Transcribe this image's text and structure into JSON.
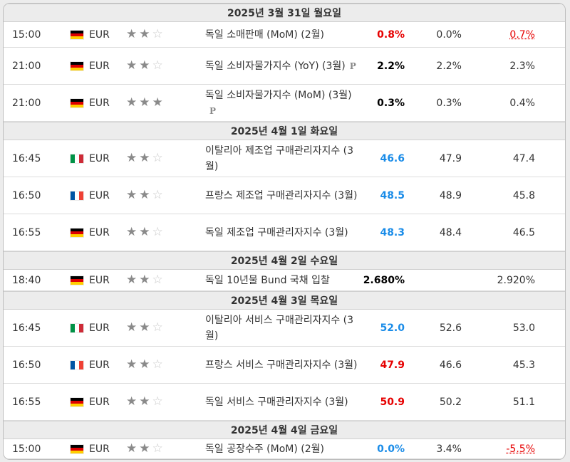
{
  "colors": {
    "positive": "#1a8ce8",
    "negative": "#e60000",
    "neutral": "#000000"
  },
  "days": [
    {
      "label": "2025년 3월 31일 월요일",
      "rows": [
        {
          "time": "15:00",
          "flag": "de",
          "currency": "EUR",
          "stars": 2,
          "event": "독일 소매판매 (MoM) (2월)",
          "prelim": "",
          "actual": "0.8%",
          "actual_tone": "bad",
          "forecast": "0.0%",
          "previous": "0.7%",
          "prev_revised": true,
          "h": 36
        },
        {
          "time": "21:00",
          "flag": "de",
          "currency": "EUR",
          "stars": 2,
          "event": "독일 소비자물가지수 (YoY) (3월)",
          "prelim": "P",
          "actual": "2.2%",
          "actual_tone": "neutral",
          "forecast": "2.2%",
          "previous": "2.3%",
          "prev_revised": false,
          "h": 52
        },
        {
          "time": "21:00",
          "flag": "de",
          "currency": "EUR",
          "stars": 3,
          "event": "독일 소비자물가지수 (MoM) (3월)",
          "prelim": "P",
          "actual": "0.3%",
          "actual_tone": "neutral",
          "forecast": "0.3%",
          "previous": "0.4%",
          "prev_revised": false,
          "h": 52
        }
      ]
    },
    {
      "label": "2025년 4월 1일 화요일",
      "rows": [
        {
          "time": "16:45",
          "flag": "it",
          "currency": "EUR",
          "stars": 2,
          "event": "이탈리아 제조업 구매관리자지수 (3월)",
          "prelim": "",
          "actual": "46.6",
          "actual_tone": "good",
          "forecast": "47.9",
          "previous": "47.4",
          "prev_revised": false,
          "h": 52
        },
        {
          "time": "16:50",
          "flag": "fr",
          "currency": "EUR",
          "stars": 2,
          "event": "프랑스 제조업 구매관리자지수 (3월)",
          "prelim": "",
          "actual": "48.5",
          "actual_tone": "good",
          "forecast": "48.9",
          "previous": "45.8",
          "prev_revised": false,
          "h": 52
        },
        {
          "time": "16:55",
          "flag": "de",
          "currency": "EUR",
          "stars": 2,
          "event": "독일 제조업 구매관리자지수 (3월)",
          "prelim": "",
          "actual": "48.3",
          "actual_tone": "good",
          "forecast": "48.4",
          "previous": "46.5",
          "prev_revised": false,
          "h": 52
        }
      ]
    },
    {
      "label": "2025년 4월 2일 수요일",
      "rows": [
        {
          "time": "18:40",
          "flag": "de",
          "currency": "EUR",
          "stars": 2,
          "event": "독일 10년물 Bund 국채 입찰",
          "prelim": "",
          "actual": "2.680%",
          "actual_tone": "neutral",
          "forecast": "",
          "previous": "2.920%",
          "prev_revised": false,
          "h": 30
        }
      ]
    },
    {
      "label": "2025년 4월 3일 목요일",
      "rows": [
        {
          "time": "16:45",
          "flag": "it",
          "currency": "EUR",
          "stars": 2,
          "event": "이탈리아 서비스 구매관리자지수 (3월)",
          "prelim": "",
          "actual": "52.0",
          "actual_tone": "good",
          "forecast": "52.6",
          "previous": "53.0",
          "prev_revised": false,
          "h": 52
        },
        {
          "time": "16:50",
          "flag": "fr",
          "currency": "EUR",
          "stars": 2,
          "event": "프랑스 서비스 구매관리자지수 (3월)",
          "prelim": "",
          "actual": "47.9",
          "actual_tone": "bad",
          "forecast": "46.6",
          "previous": "45.3",
          "prev_revised": false,
          "h": 52
        },
        {
          "time": "16:55",
          "flag": "de",
          "currency": "EUR",
          "stars": 2,
          "event": "독일 서비스 구매관리자지수 (3월)",
          "prelim": "",
          "actual": "50.9",
          "actual_tone": "bad",
          "forecast": "50.2",
          "previous": "51.1",
          "prev_revised": false,
          "h": 52
        }
      ]
    },
    {
      "label": "2025년 4월 4일 금요일",
      "rows": [
        {
          "time": "15:00",
          "flag": "de",
          "currency": "EUR",
          "stars": 2,
          "event": "독일 공장수주 (MoM) (2월)",
          "prelim": "",
          "actual": "0.0%",
          "actual_tone": "good",
          "forecast": "3.4%",
          "previous": "-5.5%",
          "prev_revised": true,
          "h": 28
        }
      ]
    }
  ]
}
